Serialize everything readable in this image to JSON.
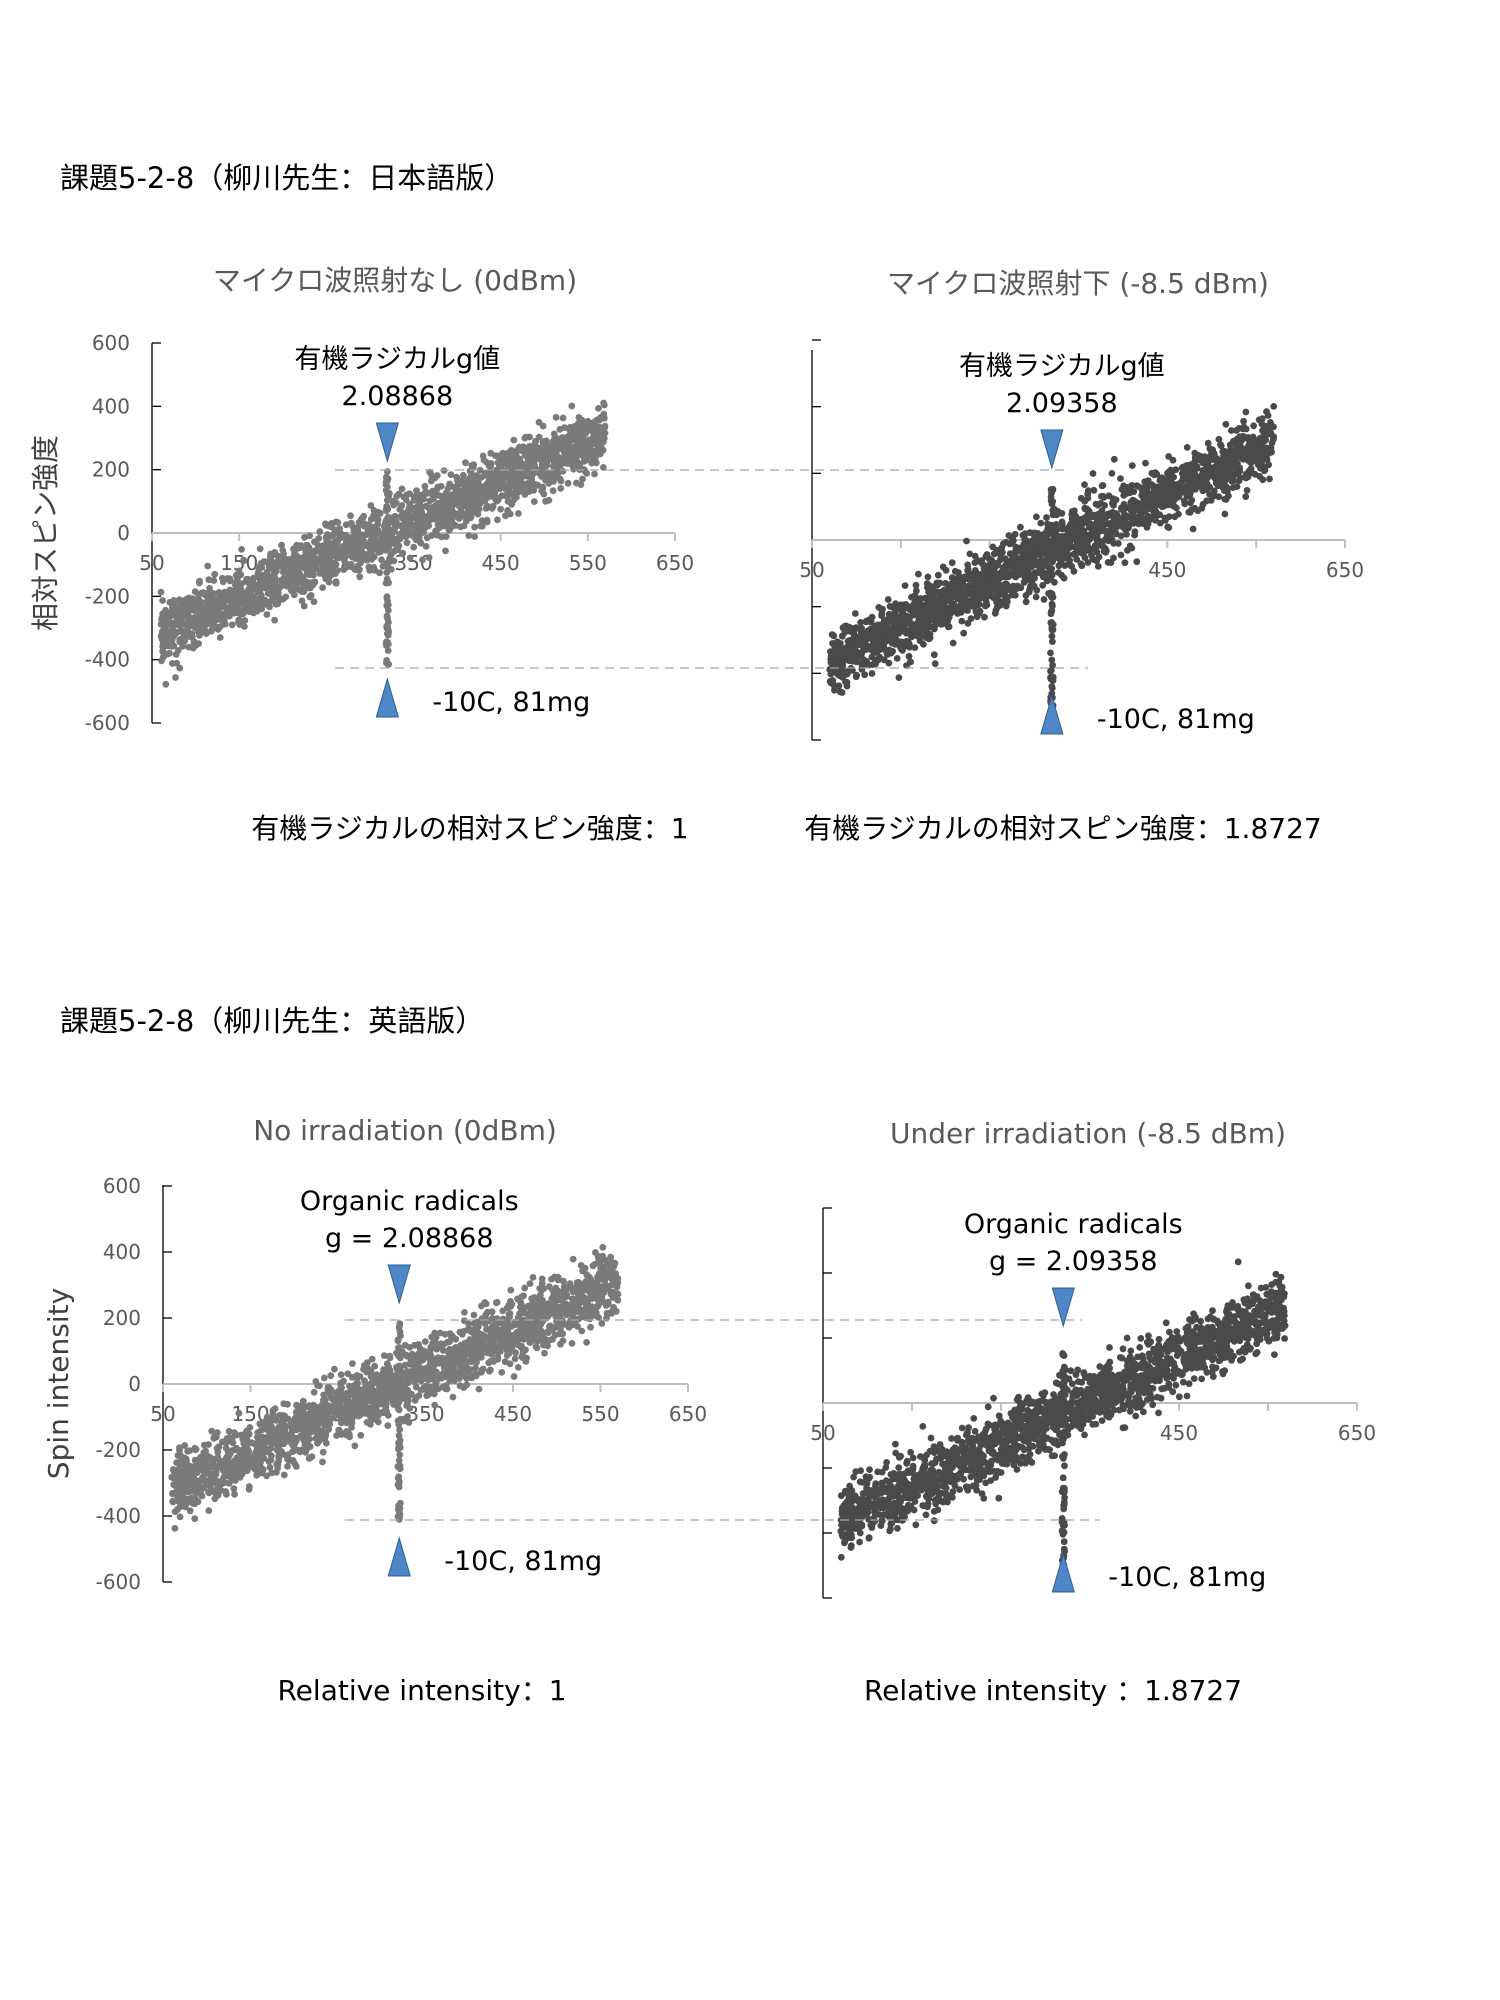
{
  "section_ja": {
    "title": "課題5-2-8（柳川先生：日本語版）"
  },
  "section_en": {
    "title": "課題5-2-8（柳川先生：英語版）"
  },
  "colors": {
    "series": "#595959",
    "guide": "#8fa9c9",
    "marker": "#4f86c6"
  },
  "chart_data": [
    {
      "id": "ja-left",
      "type": "scatter",
      "title": "マイクロ波照射なし (0dBm)",
      "ylabel": "相対スピン強度",
      "xlim": [
        50,
        650
      ],
      "ylim": [
        -600,
        600
      ],
      "x_ticks": [
        50,
        150,
        250,
        350,
        450,
        550,
        650
      ],
      "y_ticks": [
        -600,
        -400,
        -200,
        0,
        200,
        400,
        600
      ],
      "trend_start": [
        50,
        -330
      ],
      "trend_end": [
        570,
        310
      ],
      "x_range": [
        60,
        570
      ],
      "spike_x": 320,
      "spike_range": [
        -420,
        200
      ],
      "marker_x": 320,
      "annotation": [
        "有機ラジカルg値",
        "2.08868"
      ],
      "sample": "-10C, 81mg",
      "caption": "有機ラジカルの相対スピン強度：1",
      "color": "#7a7a7a"
    },
    {
      "id": "ja-right",
      "type": "scatter",
      "title": "マイクロ波照射下 (-8.5 dBm)",
      "ylabel": "",
      "xlim": [
        50,
        650
      ],
      "ylim": [
        -600,
        600
      ],
      "x_ticks": [
        50,
        450,
        650
      ],
      "y_ticks": [],
      "trend_start": [
        60,
        -380
      ],
      "trend_end": [
        570,
        300
      ],
      "x_range": [
        70,
        570
      ],
      "spike_x": 320,
      "spike_range": [
        -500,
        160
      ],
      "marker_x": 320,
      "annotation": [
        "有機ラジカルg値",
        "2.09358"
      ],
      "sample": "-10C, 81mg",
      "caption": "有機ラジカルの相対スピン強度：1.8727",
      "color": "#4a4a4a"
    },
    {
      "id": "en-left",
      "type": "scatter",
      "title": "No irradiation (0dBm)",
      "ylabel": "Spin  intensity",
      "xlim": [
        50,
        650
      ],
      "ylim": [
        -600,
        600
      ],
      "x_ticks": [
        50,
        150,
        250,
        350,
        450,
        550,
        650
      ],
      "y_ticks": [
        -600,
        -400,
        -200,
        0,
        200,
        400,
        600
      ],
      "trend_start": [
        50,
        -330
      ],
      "trend_end": [
        570,
        310
      ],
      "x_range": [
        60,
        570
      ],
      "spike_x": 320,
      "spike_range": [
        -420,
        190
      ],
      "marker_x": 320,
      "annotation": [
        "Organic radicals",
        "g = 2.08868"
      ],
      "sample": "-10C, 81mg",
      "caption": "Relative intensity：1",
      "color": "#7a7a7a"
    },
    {
      "id": "en-right",
      "type": "scatter",
      "title": "Under irradiation (-8.5 dBm)",
      "ylabel": "",
      "xlim": [
        50,
        650
      ],
      "ylim": [
        -600,
        600
      ],
      "x_ticks": [
        50,
        450,
        650
      ],
      "y_ticks": [],
      "trend_start": [
        60,
        -380
      ],
      "trend_end": [
        570,
        300
      ],
      "x_range": [
        70,
        570
      ],
      "spike_x": 320,
      "spike_range": [
        -500,
        160
      ],
      "marker_x": 320,
      "annotation": [
        "Organic radicals",
        "g = 2.09358"
      ],
      "sample": "-10C, 81mg",
      "caption": "Relative intensity  ：1.8727",
      "color": "#4a4a4a"
    }
  ]
}
